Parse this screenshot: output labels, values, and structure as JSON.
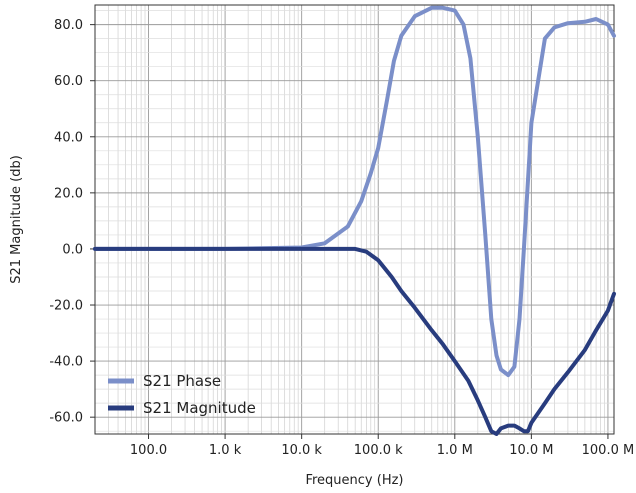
{
  "chart_data": {
    "type": "line",
    "title": "",
    "xlabel": "Frequency (Hz)",
    "ylabel": "S21 Magnitude (db)",
    "x_scale": "log",
    "xlim": [
      20,
      120000000
    ],
    "ylim": [
      -66,
      87
    ],
    "x_ticks": [
      {
        "value": 100,
        "label": "100.0"
      },
      {
        "value": 1000,
        "label": "1.0 k"
      },
      {
        "value": 10000,
        "label": "10.0 k"
      },
      {
        "value": 100000,
        "label": "100.0 k"
      },
      {
        "value": 1000000,
        "label": "1.0 M"
      },
      {
        "value": 10000000,
        "label": "10.0 M"
      },
      {
        "value": 100000000,
        "label": "100.0 M"
      }
    ],
    "y_ticks": [
      {
        "value": 80,
        "label": "80.0"
      },
      {
        "value": 60,
        "label": "60.0"
      },
      {
        "value": 40,
        "label": "40.0"
      },
      {
        "value": 20,
        "label": "20.0"
      },
      {
        "value": 0,
        "label": "0.0"
      },
      {
        "value": -20,
        "label": "-20.0"
      },
      {
        "value": -40,
        "label": "-40.0"
      },
      {
        "value": -60,
        "label": "-60.0"
      }
    ],
    "grid": true,
    "legend_position": "bottom-left",
    "series": [
      {
        "name": "S21 Phase",
        "color": "#7b8fc9",
        "x": [
          20,
          100,
          1000,
          10000,
          20000,
          40000,
          60000,
          80000,
          100000,
          130000,
          160000,
          200000,
          300000,
          500000,
          700000,
          1000000,
          1300000,
          1600000,
          2000000,
          2500000,
          3000000,
          3500000,
          4000000,
          5000000,
          6000000,
          7000000,
          8000000,
          10000000,
          15000000,
          20000000,
          30000000,
          50000000,
          70000000,
          100000000,
          120000000
        ],
        "y": [
          0,
          0,
          0,
          0.5,
          2,
          8,
          17,
          27,
          36,
          53,
          67,
          76,
          83,
          86,
          86,
          85,
          80,
          68,
          40,
          5,
          -25,
          -38,
          -43,
          -45,
          -42,
          -25,
          0,
          45,
          75,
          79,
          80.5,
          81,
          82,
          80,
          76
        ]
      },
      {
        "name": "S21 Magnitude",
        "color": "#283c7e",
        "x": [
          20,
          100,
          1000,
          10000,
          30000,
          50000,
          70000,
          100000,
          150000,
          200000,
          300000,
          500000,
          700000,
          1000000,
          1500000,
          2000000,
          2500000,
          3000000,
          3500000,
          4000000,
          5000000,
          6000000,
          7000000,
          8000000,
          9000000,
          10000000,
          15000000,
          20000000,
          30000000,
          50000000,
          70000000,
          100000000,
          120000000
        ],
        "y": [
          0,
          0,
          0,
          0,
          0,
          0,
          -1,
          -4,
          -10,
          -15,
          -21,
          -29,
          -34,
          -40,
          -47,
          -54,
          -60,
          -65,
          -66,
          -64,
          -63,
          -63,
          -64,
          -65,
          -65,
          -62,
          -55,
          -50,
          -44,
          -36,
          -29,
          -22,
          -16
        ]
      }
    ]
  }
}
